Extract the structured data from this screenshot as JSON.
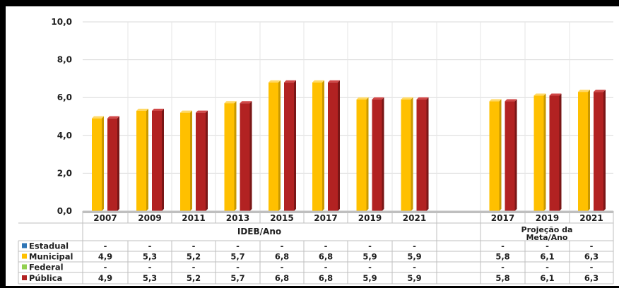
{
  "chart_data": {
    "type": "bar",
    "ylim": [
      0,
      10
    ],
    "yticks": [
      "0,0",
      "2,0",
      "4,0",
      "6,0",
      "8,0",
      "10,0"
    ],
    "grid": true,
    "groups": [
      {
        "label": "IDEB/Ano",
        "categories": [
          "2007",
          "2009",
          "2011",
          "2013",
          "2015",
          "2017",
          "2019",
          "2021"
        ]
      },
      {
        "label": "Projeção da Meta/Ano",
        "categories": [
          "2017",
          "2019",
          "2021"
        ]
      }
    ],
    "categories": [
      "2007",
      "2009",
      "2011",
      "2013",
      "2015",
      "2017",
      "2019",
      "2021",
      "2017",
      "2019",
      "2021"
    ],
    "series": [
      {
        "name": "Estadual",
        "color": "#2e75b6",
        "values": [
          null,
          null,
          null,
          null,
          null,
          null,
          null,
          null,
          null,
          null,
          null
        ],
        "labels": [
          "-",
          "-",
          "-",
          "-",
          "-",
          "-",
          "-",
          "-",
          "-",
          "-",
          "-"
        ]
      },
      {
        "name": "Municipal",
        "color": "#ffc000",
        "values": [
          4.9,
          5.3,
          5.2,
          5.7,
          6.8,
          6.8,
          5.9,
          5.9,
          5.8,
          6.1,
          6.3
        ],
        "labels": [
          "4,9",
          "5,3",
          "5,2",
          "5,7",
          "6,8",
          "6,8",
          "5,9",
          "5,9",
          "5,8",
          "6,1",
          "6,3"
        ]
      },
      {
        "name": "Federal",
        "color": "#92d050",
        "values": [
          null,
          null,
          null,
          null,
          null,
          null,
          null,
          null,
          null,
          null,
          null
        ],
        "labels": [
          "-",
          "-",
          "-",
          "-",
          "-",
          "-",
          "-",
          "-",
          "-",
          "-",
          "-"
        ]
      },
      {
        "name": "Pública",
        "color": "#b22222",
        "values": [
          4.9,
          5.3,
          5.2,
          5.7,
          6.8,
          6.8,
          5.9,
          5.9,
          5.8,
          6.1,
          6.3
        ],
        "labels": [
          "4,9",
          "5,3",
          "5,2",
          "5,7",
          "6,8",
          "6,8",
          "5,9",
          "5,9",
          "5,8",
          "6,1",
          "6,3"
        ]
      }
    ]
  }
}
